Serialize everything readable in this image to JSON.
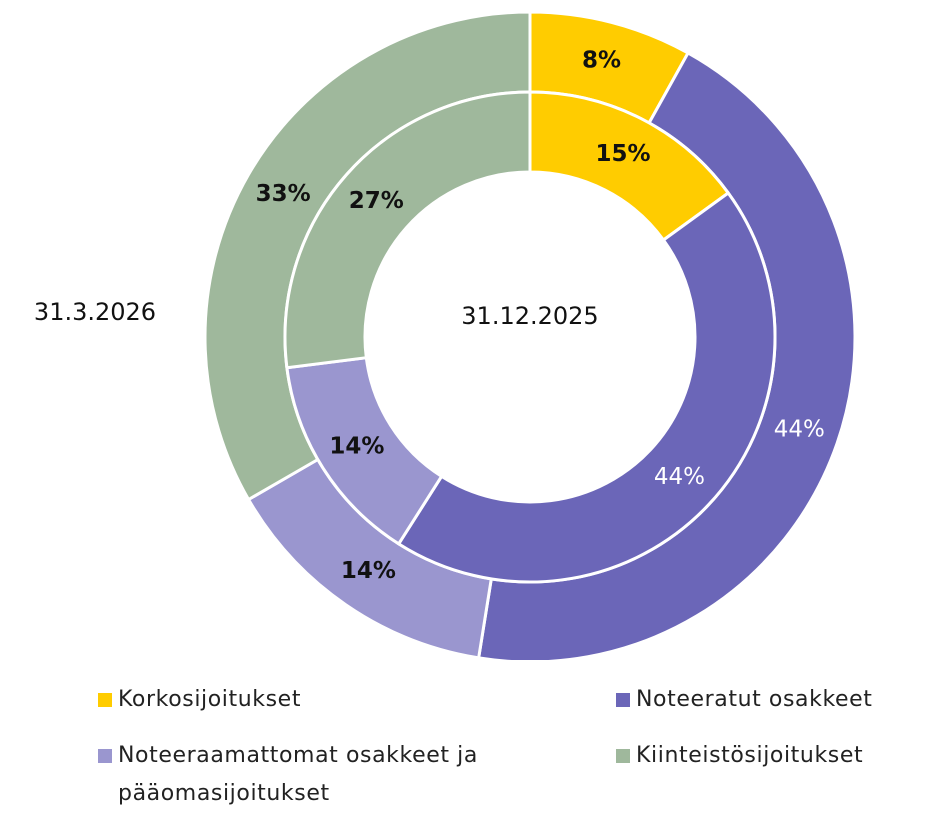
{
  "chart_data": {
    "type": "donut",
    "categories": [
      "Korkosijoitukset",
      "Noteeratut osakkeet",
      "Noteeraamattomat osakkeet ja pääomasijoitukset",
      "Kiinteistösijoitukset"
    ],
    "colors": [
      "#ffcc00",
      "#6b66b8",
      "#9a96cf",
      "#9fb89c"
    ],
    "series": [
      {
        "name": "31.3.2026",
        "values": [
          8,
          44,
          14,
          33
        ],
        "value_labels": [
          "8%",
          "44%",
          "14%",
          "33%"
        ]
      },
      {
        "name": "31.12.2025",
        "values": [
          15,
          44,
          14,
          27
        ],
        "value_labels": [
          "15%",
          "44%",
          "14%",
          "27%"
        ]
      }
    ]
  }
}
